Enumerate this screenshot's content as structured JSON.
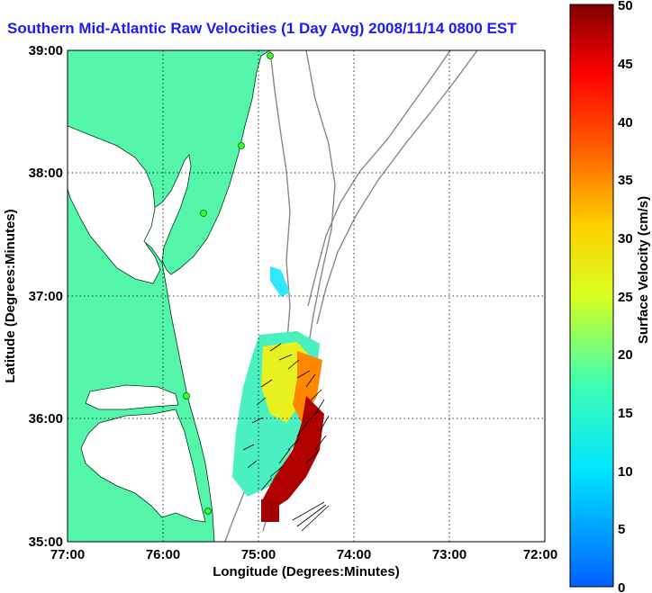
{
  "title": "Southern Mid-Atlantic Raw Velocities (1 Day Avg) 2008/11/14 0800 EST",
  "map": {
    "xlabel": "Longitude (Degrees:Minutes)",
    "ylabel": "Latitude (Degrees:Minutes)",
    "x_ticks": [
      "77:00",
      "76:00",
      "75:00",
      "74:00",
      "73:00",
      "72:00"
    ],
    "y_ticks": [
      "39:00",
      "38:00",
      "37:00",
      "36:00",
      "35:00"
    ],
    "lon_range": [
      -77,
      -72
    ],
    "lat_range": [
      35,
      39
    ],
    "land_color": "#55f5aa",
    "water_color": "#ffffff",
    "grid": true
  },
  "colorbar": {
    "label": "Surface Velocity (cm/s)",
    "ticks": [
      "50",
      "45",
      "40",
      "35",
      "30",
      "25",
      "20",
      "15",
      "10",
      "5",
      "0"
    ],
    "range": [
      0,
      50
    ],
    "colormap": "jet"
  }
}
